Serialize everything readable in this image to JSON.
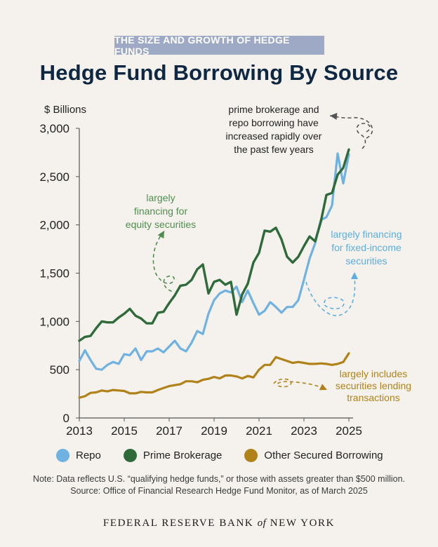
{
  "banner": "THE SIZE AND GROWTH OF HEDGE FUNDS",
  "title": "Hedge Fund Borrowing By Source",
  "colors": {
    "repo": "#6fb2e2",
    "prime": "#2f6b3a",
    "other": "#b08219",
    "axis": "#555555",
    "dashed_dark": "#555555"
  },
  "legend": [
    {
      "label": "Repo",
      "color": "#6fb2e2",
      "icon": "circle-swatch"
    },
    {
      "label": "Prime Brokerage",
      "color": "#2f6b3a",
      "icon": "circle-swatch"
    },
    {
      "label": "Other Secured Borrowing",
      "color": "#b08219",
      "icon": "circle-swatch"
    }
  ],
  "note_line1": "Note: Data reflects U.S. “qualifying hedge funds,” or those with assets greater than $500 million.",
  "note_line2": "Source: Office of Financial Research Hedge Fund Monitor, as of March 2025",
  "footer_pre": "FEDERAL RESERVE BANK",
  "footer_of": "of",
  "footer_post": "NEW YORK",
  "chart_data": {
    "type": "line",
    "ylabel": "$ Billions",
    "xlim": [
      2013,
      2025.25
    ],
    "ylim": [
      0,
      3000
    ],
    "yticks": [
      0,
      500,
      1000,
      1500,
      2000,
      2500,
      3000
    ],
    "ytick_labels": [
      "0",
      "500",
      "1,000",
      "1,500",
      "2,000",
      "2,500",
      "3,000"
    ],
    "xticks": [
      2013,
      2015,
      2017,
      2019,
      2021,
      2023,
      2025
    ],
    "grid": false,
    "legend_position": "bottom",
    "series": [
      {
        "name": "Repo",
        "color": "#6fb2e2",
        "x": [
          2013.0,
          2013.25,
          2013.5,
          2013.75,
          2014.0,
          2014.25,
          2014.5,
          2014.75,
          2015.0,
          2015.25,
          2015.5,
          2015.75,
          2016.0,
          2016.25,
          2016.5,
          2016.75,
          2017.0,
          2017.25,
          2017.5,
          2017.75,
          2018.0,
          2018.25,
          2018.5,
          2018.75,
          2019.0,
          2019.25,
          2019.5,
          2019.75,
          2020.0,
          2020.25,
          2020.5,
          2020.75,
          2021.0,
          2021.25,
          2021.5,
          2021.75,
          2022.0,
          2022.25,
          2022.5,
          2022.75,
          2023.0,
          2023.25,
          2023.5,
          2023.75,
          2024.0,
          2024.25,
          2024.5,
          2024.75,
          2025.0
        ],
        "y": [
          590,
          700,
          600,
          510,
          500,
          550,
          580,
          560,
          660,
          650,
          720,
          600,
          690,
          690,
          720,
          680,
          740,
          800,
          720,
          690,
          780,
          900,
          870,
          1080,
          1220,
          1290,
          1320,
          1300,
          1360,
          1200,
          1320,
          1190,
          1070,
          1110,
          1200,
          1150,
          1090,
          1150,
          1150,
          1220,
          1430,
          1650,
          1810,
          2050,
          2080,
          2200,
          2740,
          2430,
          2730
        ]
      },
      {
        "name": "Prime Brokerage",
        "color": "#2f6b3a",
        "x": [
          2013.0,
          2013.25,
          2013.5,
          2013.75,
          2014.0,
          2014.25,
          2014.5,
          2014.75,
          2015.0,
          2015.25,
          2015.5,
          2015.75,
          2016.0,
          2016.25,
          2016.5,
          2016.75,
          2017.0,
          2017.25,
          2017.5,
          2017.75,
          2018.0,
          2018.25,
          2018.5,
          2018.75,
          2019.0,
          2019.25,
          2019.5,
          2019.75,
          2020.0,
          2020.25,
          2020.5,
          2020.75,
          2021.0,
          2021.25,
          2021.5,
          2021.75,
          2022.0,
          2022.25,
          2022.5,
          2022.75,
          2023.0,
          2023.25,
          2023.5,
          2023.75,
          2024.0,
          2024.25,
          2024.5,
          2024.75,
          2025.0
        ],
        "y": [
          800,
          840,
          850,
          930,
          1000,
          990,
          990,
          1040,
          1080,
          1130,
          1060,
          1030,
          980,
          980,
          1090,
          1100,
          1190,
          1270,
          1370,
          1380,
          1430,
          1540,
          1590,
          1290,
          1410,
          1430,
          1380,
          1410,
          1070,
          1280,
          1390,
          1610,
          1710,
          1940,
          1930,
          1970,
          1850,
          1670,
          1610,
          1670,
          1780,
          1880,
          1830,
          2030,
          2310,
          2330,
          2520,
          2590,
          2780
        ]
      },
      {
        "name": "Other Secured Borrowing",
        "color": "#b08219",
        "x": [
          2013.0,
          2013.25,
          2013.5,
          2013.75,
          2014.0,
          2014.25,
          2014.5,
          2014.75,
          2015.0,
          2015.25,
          2015.5,
          2015.75,
          2016.0,
          2016.25,
          2016.5,
          2016.75,
          2017.0,
          2017.25,
          2017.5,
          2017.75,
          2018.0,
          2018.25,
          2018.5,
          2018.75,
          2019.0,
          2019.25,
          2019.5,
          2019.75,
          2020.0,
          2020.25,
          2020.5,
          2020.75,
          2021.0,
          2021.25,
          2021.5,
          2021.75,
          2022.0,
          2022.25,
          2022.5,
          2022.75,
          2023.0,
          2023.25,
          2023.5,
          2023.75,
          2024.0,
          2024.25,
          2024.5,
          2024.75,
          2025.0
        ],
        "y": [
          210,
          225,
          260,
          265,
          285,
          275,
          290,
          285,
          280,
          255,
          255,
          270,
          265,
          265,
          290,
          310,
          330,
          340,
          350,
          380,
          380,
          370,
          395,
          405,
          425,
          410,
          440,
          440,
          430,
          410,
          435,
          420,
          500,
          550,
          550,
          630,
          610,
          590,
          570,
          580,
          570,
          560,
          560,
          565,
          560,
          550,
          560,
          580,
          670
        ]
      }
    ],
    "annotations": [
      {
        "id": "prime",
        "lines": [
          "prime brokerage and",
          "repo borrowing have",
          "increased rapidly over",
          "the past few years"
        ],
        "color": "#222222"
      },
      {
        "id": "equity",
        "lines": [
          "largely",
          "financing for",
          "equity securities"
        ],
        "color": "#4f8e4f"
      },
      {
        "id": "fixed",
        "lines": [
          "largely financing",
          "for fixed-income",
          "securities"
        ],
        "color": "#5aaee0"
      },
      {
        "id": "lending",
        "lines": [
          "largely includes",
          "securities lending",
          "transactions"
        ],
        "color": "#b08219"
      }
    ]
  }
}
